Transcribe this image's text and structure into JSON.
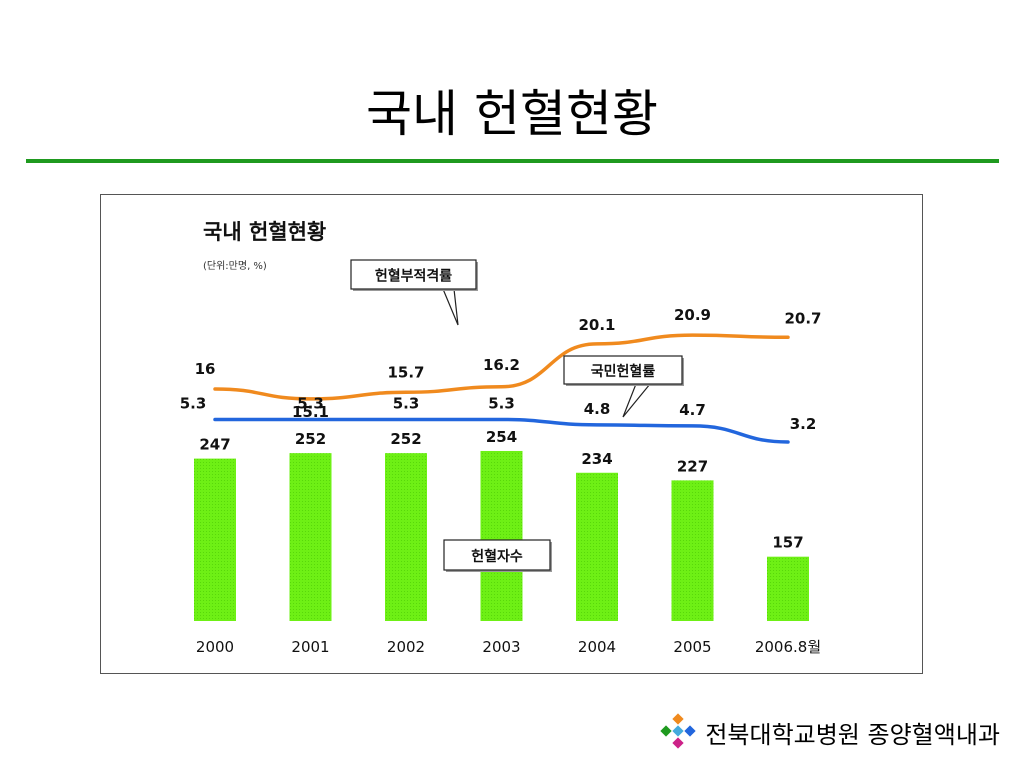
{
  "slide": {
    "title": "국내 헌혈현황",
    "footer_text": "전북대학교병원  종양혈액내과",
    "rule_color": "#1f9a1f"
  },
  "chart_data": {
    "type": "bar",
    "title": "국내 헌혈현황",
    "subtitle": "(단위:만명, %)",
    "categories": [
      "2000",
      "2001",
      "2002",
      "2003",
      "2004",
      "2005",
      "2006.8월"
    ],
    "series": [
      {
        "name": "헌혈자수",
        "type": "bar",
        "values": [
          247,
          252,
          252,
          254,
          234,
          227,
          157
        ],
        "labels": [
          "247",
          "252",
          "252",
          "254",
          "234",
          "227",
          "157"
        ],
        "color": "#66ee11"
      },
      {
        "name": "헌혈부적격률",
        "type": "line",
        "values": [
          16,
          15.1,
          15.7,
          16.2,
          20.1,
          20.9,
          20.7
        ],
        "labels": [
          "16",
          "15.1",
          "15.7",
          "16.2",
          "20.1",
          "20.9",
          "20.7"
        ],
        "color": "#f08a1e"
      },
      {
        "name": "국민헌혈률",
        "type": "line",
        "values": [
          5.3,
          5.3,
          5.3,
          5.3,
          4.8,
          4.7,
          3.2
        ],
        "labels": [
          "5.3",
          "5.3",
          "5.3",
          "5.3",
          "4.8",
          "4.7",
          "3.2"
        ],
        "color": "#2266dd"
      }
    ],
    "grid": false,
    "legend": "callouts"
  }
}
